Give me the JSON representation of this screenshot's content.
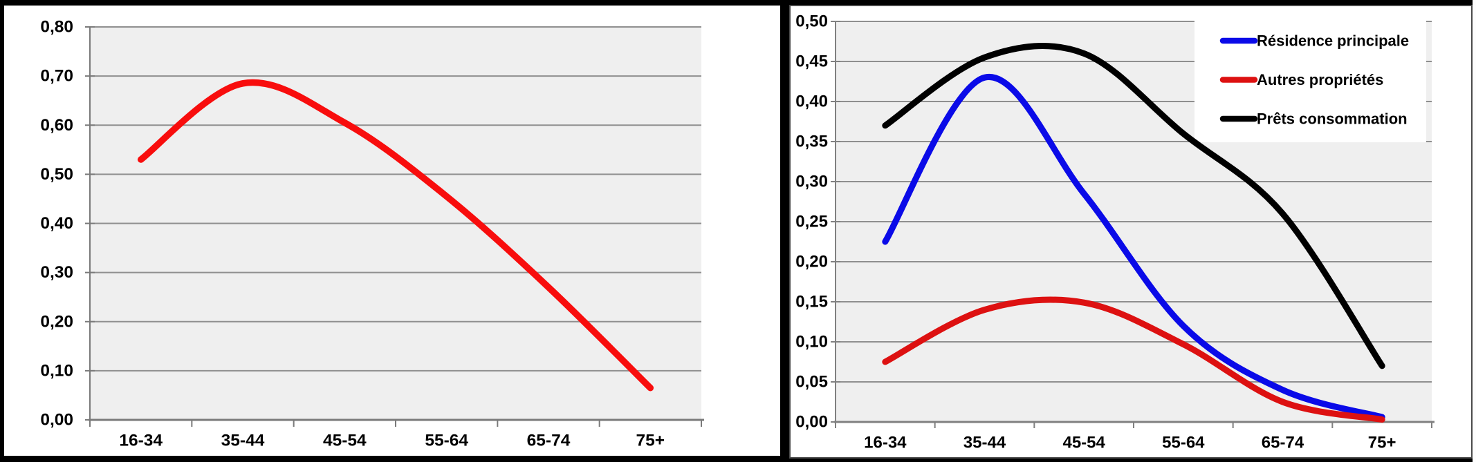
{
  "page": {
    "background_color": "#000000",
    "panel_color": "#ffffff"
  },
  "chart_data": [
    {
      "type": "line",
      "title": "",
      "xlabel": "",
      "ylabel": "",
      "categories": [
        "16-34",
        "35-44",
        "45-54",
        "55-64",
        "65-74",
        "75+"
      ],
      "series": [
        {
          "name": "",
          "color": "#f80d0d",
          "values": [
            0.53,
            0.685,
            0.605,
            0.455,
            0.27,
            0.065
          ]
        }
      ],
      "ylim": [
        0,
        0.8
      ],
      "y_tick_step": 0.1,
      "y_tick_labels": [
        "0,80",
        "0,70",
        "0,60",
        "0,50",
        "0,40",
        "0,30",
        "0,20",
        "0,10",
        "0,00"
      ],
      "grid": true,
      "smooth": true,
      "legend": null,
      "plot_bg": "#efefef",
      "grid_color": "#8f8f8f",
      "axis_color": "#7a7a7a"
    },
    {
      "type": "line",
      "title": "",
      "xlabel": "",
      "ylabel": "",
      "categories": [
        "16-34",
        "35-44",
        "45-54",
        "55-64",
        "65-74",
        "75+"
      ],
      "series": [
        {
          "name": "Résidence principale",
          "color": "#0a0ae8",
          "values": [
            0.225,
            0.43,
            0.285,
            0.12,
            0.04,
            0.006
          ]
        },
        {
          "name": "Autres propriétés",
          "color": "#dd1111",
          "values": [
            0.075,
            0.14,
            0.149,
            0.097,
            0.025,
            0.003
          ]
        },
        {
          "name": "Prêts consommation",
          "color": "#000000",
          "values": [
            0.37,
            0.455,
            0.46,
            0.36,
            0.26,
            0.07
          ]
        }
      ],
      "ylim": [
        0,
        0.5
      ],
      "y_tick_step": 0.05,
      "y_tick_labels": [
        "0,50",
        "0,45",
        "0,40",
        "0,35",
        "0,30",
        "0,25",
        "0,20",
        "0,15",
        "0,10",
        "0,05",
        "0,00"
      ],
      "grid": true,
      "smooth": true,
      "legend": {
        "position": "top-right",
        "background": "#ffffff",
        "items": [
          {
            "label": "Résidence principale",
            "color": "#0a0ae8"
          },
          {
            "label": "Autres propriétés",
            "color": "#dd1111"
          },
          {
            "label": "Prêts consommation",
            "color": "#000000"
          }
        ]
      },
      "plot_bg": "#efefef",
      "grid_color": "#8f8f8f",
      "axis_color": "#808080"
    }
  ]
}
